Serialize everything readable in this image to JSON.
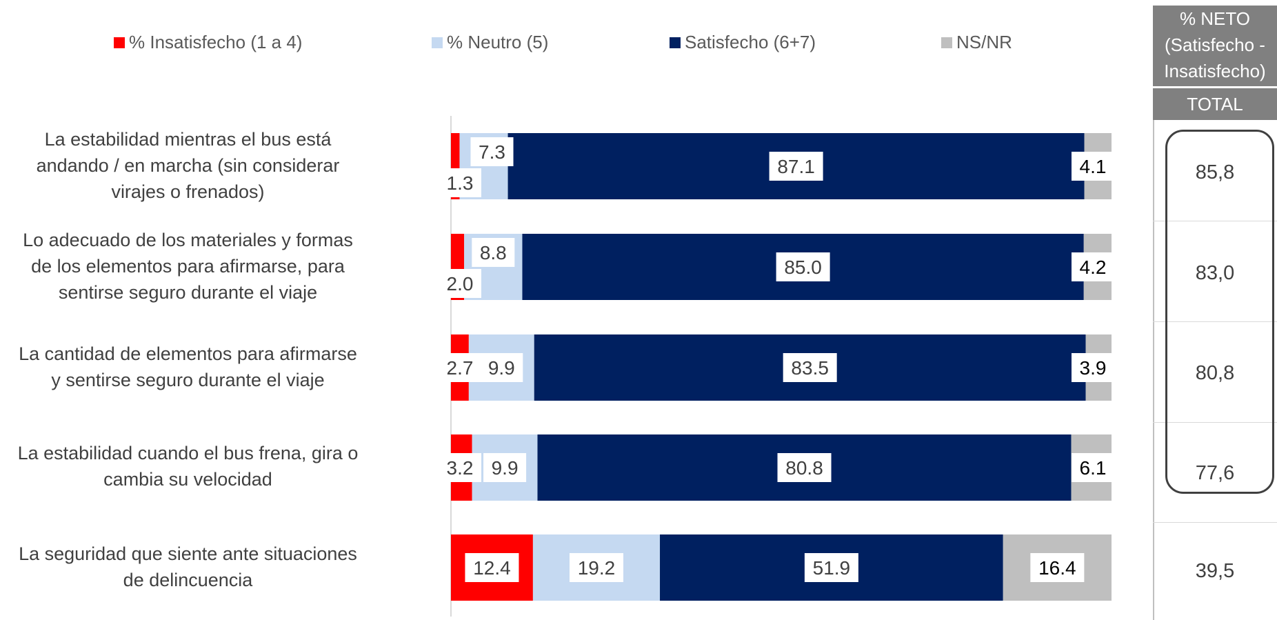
{
  "chart_data": {
    "type": "bar",
    "orientation": "horizontal",
    "stacked": true,
    "categories": [
      "La estabilidad mientras el bus está andando / en marcha (sin considerar virajes o frenados)",
      "Lo adecuado de los materiales y formas de los elementos para afirmarse, para sentirse seguro durante el viaje",
      "La cantidad de elementos para afirmarse y sentirse seguro durante el viaje",
      "La estabilidad cuando el bus frena, gira o cambia su velocidad",
      "La seguridad que siente ante situaciones de delincuencia"
    ],
    "category_lines": [
      [
        "La estabilidad mientras el bus está",
        "andando / en marcha (sin considerar",
        "virajes o frenados)"
      ],
      [
        "Lo adecuado de los materiales y formas",
        "de los elementos para afirmarse, para",
        "sentirse seguro durante el viaje"
      ],
      [
        "La cantidad de elementos para afirmarse",
        "y sentirse seguro durante el viaje"
      ],
      [
        "La estabilidad cuando el bus frena, gira o",
        "cambia su velocidad"
      ],
      [
        "La seguridad que siente ante situaciones",
        "de delincuencia"
      ]
    ],
    "series": [
      {
        "name": "% Insatisfecho (1 a 4)",
        "color": "#FF0000",
        "values": [
          1.3,
          2.0,
          2.7,
          3.2,
          12.4
        ]
      },
      {
        "name": "% Neutro (5)",
        "color": "#C5D9F1",
        "values": [
          7.3,
          8.8,
          9.9,
          9.9,
          19.2
        ]
      },
      {
        "name": "Satisfecho (6+7)",
        "color": "#002060",
        "values": [
          87.1,
          85.0,
          83.5,
          80.8,
          51.9
        ]
      },
      {
        "name": "NS/NR",
        "color": "#BFBFBF",
        "values": [
          4.1,
          4.2,
          3.9,
          6.1,
          16.4
        ]
      }
    ],
    "value_labels": [
      [
        "1.3",
        "7.3",
        "87.1",
        "4.1"
      ],
      [
        "2.0",
        "8.8",
        "85.0",
        "4.2"
      ],
      [
        "2.7",
        "9.9",
        "83.5",
        "3.9"
      ],
      [
        "3.2",
        "9.9",
        "80.8",
        "6.1"
      ],
      [
        "12.4",
        "19.2",
        "51.9",
        "16.4"
      ]
    ],
    "xlim": [
      0,
      100
    ],
    "legend_position": "top",
    "grid": false
  },
  "net_table": {
    "header": "% NETO\n(Satisfecho -\nInsatisfecho)",
    "subheader": "TOTAL",
    "values": [
      "85,8",
      "83,0",
      "80,8",
      "77,6",
      "39,5"
    ]
  }
}
